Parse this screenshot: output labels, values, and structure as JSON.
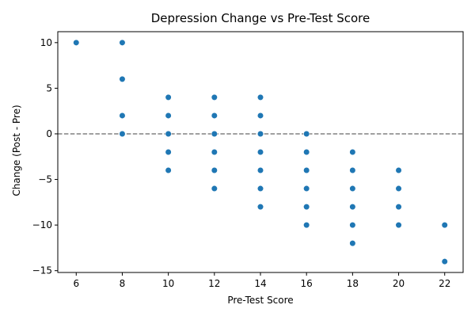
{
  "chart_data": {
    "type": "scatter",
    "title": "Depression Change vs Pre-Test Score",
    "xlabel": "Pre-Test Score",
    "ylabel": "Change (Post - Pre)",
    "xlim": [
      5.2,
      22.8
    ],
    "ylim": [
      -15.2,
      11.2
    ],
    "xticks": [
      6,
      8,
      10,
      12,
      14,
      16,
      18,
      20,
      22
    ],
    "yticks": [
      10,
      5,
      0,
      -5,
      -10,
      -15
    ],
    "ytick_labels": [
      "10",
      "5",
      "0",
      "−5",
      "−10",
      "−15"
    ],
    "reference_line": {
      "y": 0,
      "style": "dashed",
      "color": "#808080"
    },
    "grid": false,
    "legend": "none",
    "marker_color": "#1f77b4",
    "points": [
      {
        "x": 6,
        "y": 10
      },
      {
        "x": 8,
        "y": 10
      },
      {
        "x": 8,
        "y": 6
      },
      {
        "x": 8,
        "y": 2
      },
      {
        "x": 8,
        "y": 0
      },
      {
        "x": 10,
        "y": 4
      },
      {
        "x": 10,
        "y": 2
      },
      {
        "x": 10,
        "y": 0
      },
      {
        "x": 10,
        "y": -2
      },
      {
        "x": 10,
        "y": -4
      },
      {
        "x": 12,
        "y": 4
      },
      {
        "x": 12,
        "y": 2
      },
      {
        "x": 12,
        "y": 0
      },
      {
        "x": 12,
        "y": -2
      },
      {
        "x": 12,
        "y": -4
      },
      {
        "x": 12,
        "y": -6
      },
      {
        "x": 14,
        "y": 4
      },
      {
        "x": 14,
        "y": 2
      },
      {
        "x": 14,
        "y": 0
      },
      {
        "x": 14,
        "y": -2
      },
      {
        "x": 14,
        "y": -4
      },
      {
        "x": 14,
        "y": -6
      },
      {
        "x": 14,
        "y": -8
      },
      {
        "x": 16,
        "y": 0
      },
      {
        "x": 16,
        "y": -2
      },
      {
        "x": 16,
        "y": -4
      },
      {
        "x": 16,
        "y": -6
      },
      {
        "x": 16,
        "y": -8
      },
      {
        "x": 16,
        "y": -10
      },
      {
        "x": 18,
        "y": -2
      },
      {
        "x": 18,
        "y": -4
      },
      {
        "x": 18,
        "y": -6
      },
      {
        "x": 18,
        "y": -8
      },
      {
        "x": 18,
        "y": -10
      },
      {
        "x": 18,
        "y": -12
      },
      {
        "x": 20,
        "y": -4
      },
      {
        "x": 20,
        "y": -6
      },
      {
        "x": 20,
        "y": -8
      },
      {
        "x": 20,
        "y": -10
      },
      {
        "x": 22,
        "y": -10
      },
      {
        "x": 22,
        "y": -14
      }
    ]
  }
}
